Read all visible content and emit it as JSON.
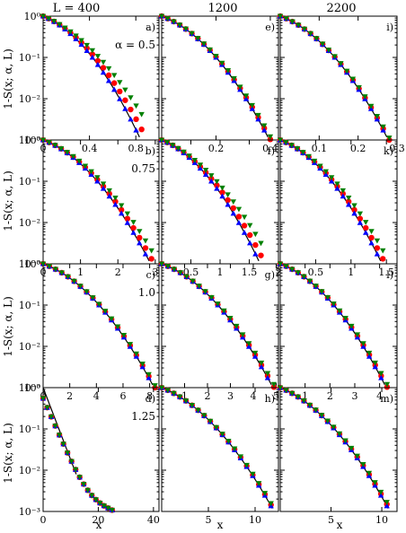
{
  "figure": {
    "column_titles": [
      "L = 400",
      "1200",
      "2200"
    ],
    "ylabel": "1-S(x; α, L)",
    "xlabel": "x"
  },
  "colors": {
    "series_red": "#ff0000",
    "series_blue": "#0000ff",
    "series_green": "#008000",
    "theory_line": "#000000"
  },
  "chart_data": {
    "type": "scatter",
    "yscale": "log",
    "ylim": [
      0.001,
      1
    ],
    "y_tick_labels": [
      "10⁰",
      "10⁻¹",
      "10⁻²",
      "10⁻³"
    ],
    "markers": [
      "circle",
      "triangle-up",
      "triangle-down"
    ],
    "rows": [
      {
        "alpha_label": "α = 0.5",
        "panels": [
          {
            "label": "a)",
            "xlim": [
              0,
              1.0
            ],
            "ticks": [
              0,
              0.4,
              0.8
            ],
            "tick_labels": [
              "0",
              "0.4",
              "0.8"
            ],
            "x_end": 0.85,
            "spread": 0.22
          },
          {
            "label": "e)",
            "xlim": [
              0,
              0.43
            ],
            "ticks": [
              0.2,
              0.4
            ],
            "tick_labels": [
              "0.2",
              "0.4"
            ],
            "x_end": 0.4,
            "spread": 0.04
          },
          {
            "label": "i)",
            "xlim": [
              0,
              0.3
            ],
            "ticks": [
              0.1,
              0.2,
              0.3
            ],
            "tick_labels": [
              "0.1",
              "0.2",
              "0.3"
            ],
            "x_end": 0.28,
            "spread": 0.03
          }
        ]
      },
      {
        "alpha_label": "0.75",
        "panels": [
          {
            "label": "b)",
            "xlim": [
              0,
              3.1
            ],
            "ticks": [
              0,
              1,
              2,
              3
            ],
            "tick_labels": [
              "0",
              "1",
              "2",
              "3"
            ],
            "x_end": 2.9,
            "spread": 0.12
          },
          {
            "label": "f)",
            "xlim": [
              0,
              2.0
            ],
            "ticks": [
              0.5,
              1,
              1.5,
              2
            ],
            "tick_labels": [
              "0.5",
              "1",
              "1.5",
              "2"
            ],
            "x_end": 1.7,
            "spread": 0.18
          },
          {
            "label": "k)",
            "xlim": [
              0,
              1.65
            ],
            "ticks": [
              0.5,
              1,
              1.5
            ],
            "tick_labels": [
              "0.5",
              "1",
              "1.5"
            ],
            "x_end": 1.45,
            "spread": 0.12
          }
        ]
      },
      {
        "alpha_label": "1.0",
        "panels": [
          {
            "label": "c)",
            "xlim": [
              0,
              8.7
            ],
            "ticks": [
              0,
              2,
              4,
              6,
              8
            ],
            "tick_labels": [
              "0",
              "2",
              "4",
              "6",
              "8"
            ],
            "x_end": 8.4,
            "spread": 0.03
          },
          {
            "label": "g)",
            "xlim": [
              0,
              5.1
            ],
            "ticks": [
              1,
              2,
              3,
              4,
              5
            ],
            "tick_labels": [
              "1",
              "2",
              "3",
              "4",
              "5"
            ],
            "x_end": 4.9,
            "spread": 0.04
          },
          {
            "label": "l)",
            "xlim": [
              0,
              4.7
            ],
            "ticks": [
              1,
              2,
              3,
              4
            ],
            "tick_labels": [
              "1",
              "2",
              "3",
              "4"
            ],
            "x_end": 4.3,
            "spread": 0.04
          }
        ]
      },
      {
        "alpha_label": "1.25",
        "panels": [
          {
            "label": "d)",
            "xlim": [
              0,
              42
            ],
            "ticks": [
              0,
              20,
              40
            ],
            "tick_labels": [
              "0",
              "20",
              "40"
            ],
            "x_end": 40,
            "spread": 0,
            "plateau": true
          },
          {
            "label": "h)",
            "xlim": [
              0,
              12.5
            ],
            "ticks": [
              5,
              10
            ],
            "tick_labels": [
              "5",
              "10"
            ],
            "x_end": 11.7,
            "spread": 0.02
          },
          {
            "label": "m)",
            "xlim": [
              0,
              11.5
            ],
            "ticks": [
              5,
              10
            ],
            "tick_labels": [
              "5",
              "10"
            ],
            "x_end": 10.5,
            "spread": 0.03
          }
        ]
      }
    ]
  }
}
